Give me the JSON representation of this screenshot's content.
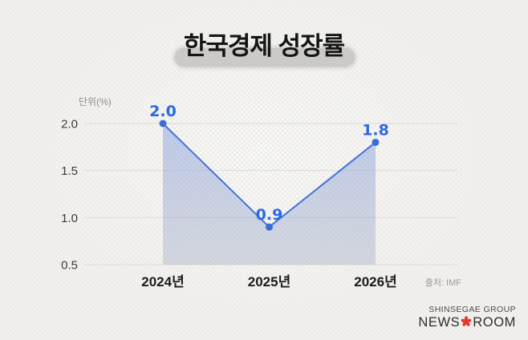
{
  "page": {
    "logo": {
      "line1": "SHINSEGAE GROUP",
      "news": "NEWS",
      "room": "ROOM",
      "flower_icon": "shinsegae-flower",
      "flower_color": "#e23a2c"
    }
  },
  "chart_data": {
    "type": "area",
    "title": "한국경제 성장률",
    "categories": [
      "2024년",
      "2025년",
      "2026년"
    ],
    "values": [
      2.0,
      0.9,
      1.8
    ],
    "value_labels": [
      "2.0",
      "0.9",
      "1.8"
    ],
    "ylabel": "단위(%)",
    "xlabel": "",
    "yticks": [
      2.0,
      1.5,
      1.0,
      0.5
    ],
    "ytick_labels": [
      "2.0",
      "1.5",
      "1.0",
      "0.5"
    ],
    "ylim": [
      0.5,
      2.0
    ],
    "grid": true,
    "legend": "none",
    "source": "출처: IMF",
    "colors": {
      "line": "#4673d7",
      "point": "#3c6cd9",
      "value_label": "#2a69e6",
      "area_top": "rgba(132,158,224,0.50)",
      "area_bottom": "rgba(168,176,198,0.42)",
      "gridline": "#dcdbd9"
    }
  }
}
